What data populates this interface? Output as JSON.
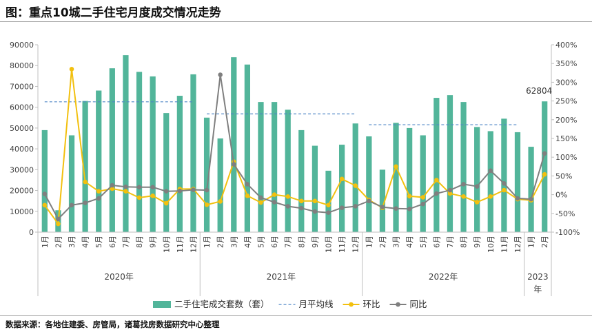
{
  "header": {
    "title": "图：重点10城二手住宅月度成交情况走势"
  },
  "footer": {
    "source": "数据来源：各地住建委、房管局，诸葛找房数据研究中心整理"
  },
  "chart_data": {
    "type": "bar",
    "title": "重点10城二手住宅月度成交情况走势",
    "categories": [
      "1月",
      "2月",
      "3月",
      "4月",
      "5月",
      "6月",
      "7月",
      "8月",
      "9月",
      "10月",
      "11月",
      "12月",
      "1月",
      "2月",
      "3月",
      "4月",
      "5月",
      "6月",
      "7月",
      "8月",
      "9月",
      "10月",
      "11月",
      "12月",
      "1月",
      "2月",
      "3月",
      "4月",
      "5月",
      "6月",
      "7月",
      "8月",
      "9月",
      "10月",
      "11月",
      "12月",
      "1月",
      "2月"
    ],
    "year_groups": [
      {
        "label": "2020年",
        "count": 12
      },
      {
        "label": "2021年",
        "count": 12
      },
      {
        "label": "2022年",
        "count": 12
      },
      {
        "label": "2023年",
        "count": 2
      }
    ],
    "series": [
      {
        "name": "二手住宅成交套数（套）",
        "axis": "left",
        "type": "bar",
        "color": "#52b59a",
        "values": [
          49000,
          10500,
          46500,
          63000,
          68000,
          78700,
          85000,
          77000,
          74800,
          57200,
          65500,
          75800,
          55000,
          45000,
          84000,
          80500,
          62500,
          62500,
          58800,
          49000,
          41500,
          29500,
          42000,
          52200,
          46000,
          30000,
          52500,
          50000,
          46500,
          64500,
          65800,
          62500,
          50500,
          48500,
          54500,
          48000,
          41000,
          62804
        ]
      },
      {
        "name": "环比",
        "axis": "right",
        "type": "line",
        "color": "#f2c00f",
        "values": [
          -0.28,
          -0.78,
          3.35,
          0.34,
          0.09,
          0.16,
          0.09,
          -0.08,
          -0.03,
          -0.23,
          0.15,
          0.15,
          -0.27,
          -0.18,
          0.88,
          -0.03,
          -0.21,
          0.0,
          -0.05,
          -0.17,
          -0.17,
          -0.28,
          0.42,
          0.24,
          -0.14,
          -0.35,
          0.75,
          -0.04,
          -0.07,
          0.39,
          0.03,
          -0.05,
          -0.2,
          -0.05,
          0.12,
          -0.12,
          -0.15,
          0.54
        ]
      },
      {
        "name": "同比",
        "axis": "right",
        "type": "line",
        "color": "#7f7f7f",
        "values": [
          0.02,
          -0.65,
          -0.28,
          -0.22,
          -0.1,
          0.25,
          0.21,
          0.2,
          0.2,
          0.09,
          0.1,
          0.13,
          0.12,
          3.2,
          0.81,
          0.28,
          -0.08,
          -0.2,
          -0.31,
          -0.36,
          -0.45,
          -0.48,
          -0.35,
          -0.31,
          -0.17,
          -0.33,
          -0.37,
          -0.38,
          -0.25,
          0.03,
          0.12,
          0.28,
          0.22,
          0.64,
          0.3,
          -0.1,
          -0.12,
          1.1
        ]
      }
    ],
    "monthly_average": {
      "name": "月平均线",
      "color": "#4f86c6",
      "segments": [
        {
          "from": 0,
          "to": 11,
          "value": 62600
        },
        {
          "from": 12,
          "to": 23,
          "value": 56800
        },
        {
          "from": 24,
          "to": 35,
          "value": 51600
        }
      ]
    },
    "annotation": {
      "index": 37,
      "text": "62804"
    },
    "y_left": {
      "min": 0,
      "max": 90000,
      "step": 10000,
      "ticks": [
        "0",
        "10000",
        "20000",
        "30000",
        "40000",
        "50000",
        "60000",
        "70000",
        "80000",
        "90000"
      ]
    },
    "y_right": {
      "min": -1.0,
      "max": 4.0,
      "step": 0.5,
      "ticks": [
        "-100%",
        "-50%",
        "0%",
        "50%",
        "100%",
        "150%",
        "200%",
        "250%",
        "300%",
        "350%",
        "400%"
      ]
    },
    "legend": {
      "position": "bottom",
      "items": [
        {
          "label": "二手住宅成交套数（套）",
          "kind": "bar",
          "color": "#52b59a"
        },
        {
          "label": "月平均线",
          "kind": "dash",
          "color": "#4f86c6"
        },
        {
          "label": "环比",
          "kind": "line-marker",
          "color": "#f2c00f"
        },
        {
          "label": "同比",
          "kind": "line-marker",
          "color": "#7f7f7f"
        }
      ]
    }
  }
}
